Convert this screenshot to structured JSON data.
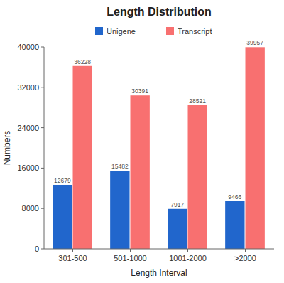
{
  "chart_data": {
    "type": "bar",
    "title": "Length Distribution",
    "xlabel": "Length Interval",
    "ylabel": "Numbers",
    "categories": [
      "301-500",
      "501-1000",
      "1001-2000",
      ">2000"
    ],
    "series": [
      {
        "name": "Unigene",
        "color": "#2166cc",
        "values": [
          12679,
          15482,
          7917,
          9466
        ]
      },
      {
        "name": "Transcript",
        "color": "#f87070",
        "values": [
          36228,
          30391,
          28521,
          39957
        ]
      }
    ],
    "ylim": [
      0,
      40000
    ],
    "yticks": [
      0,
      8000,
      16000,
      24000,
      32000,
      40000
    ],
    "grid": false,
    "legend": "top",
    "data_labels": true
  }
}
